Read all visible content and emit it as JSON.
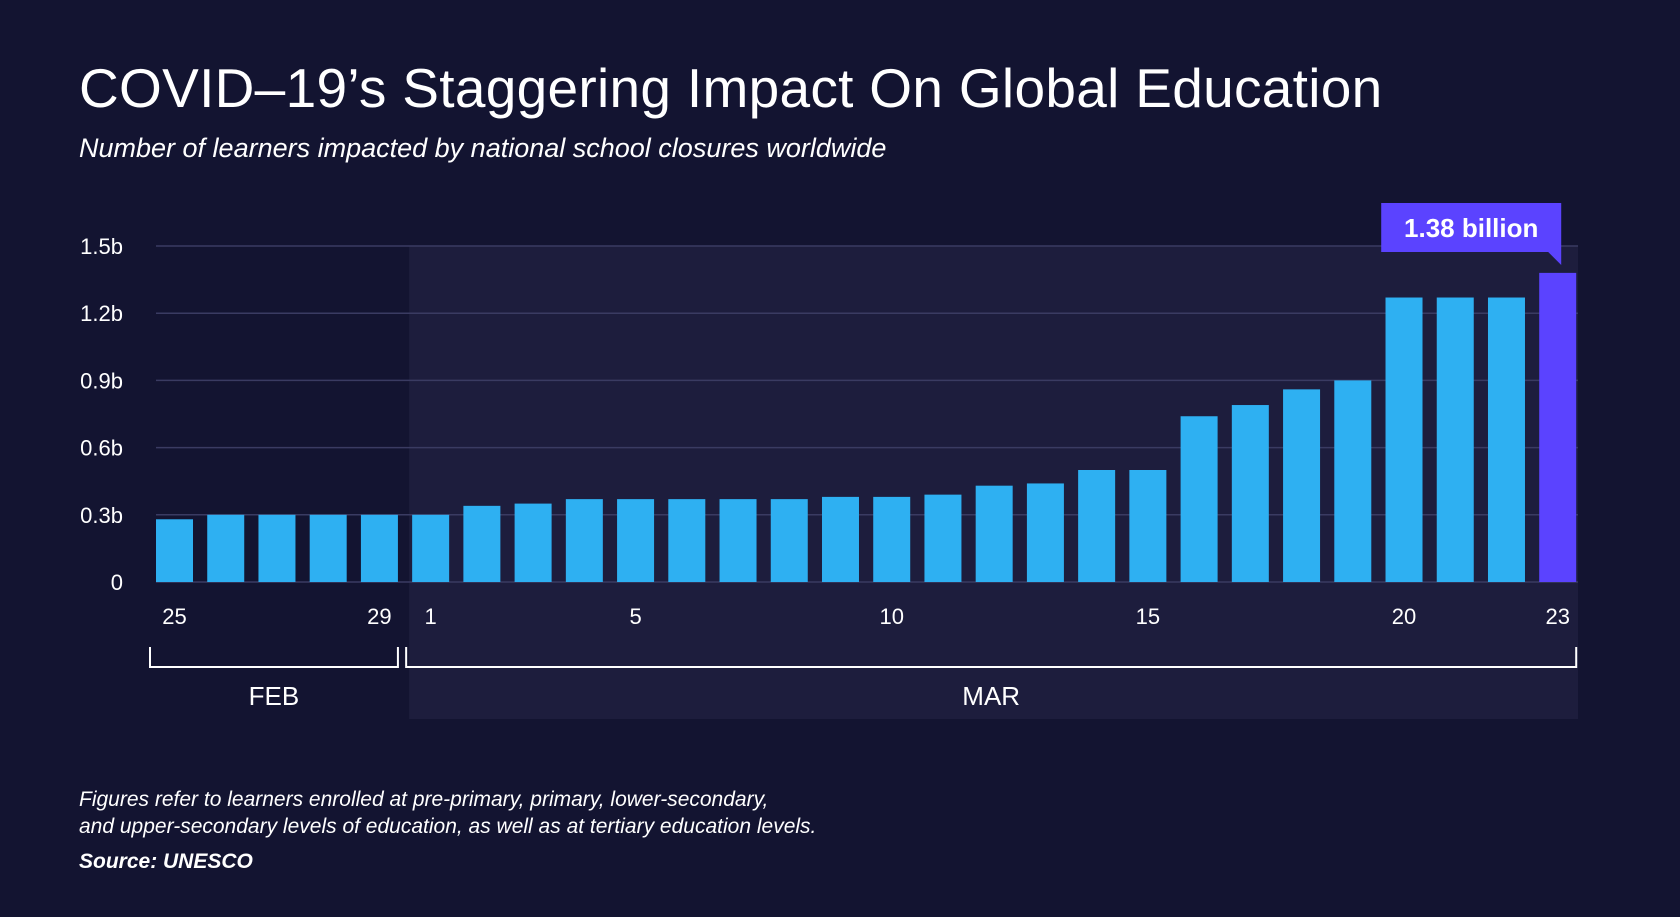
{
  "header": {
    "title": "COVID–19’s Staggering Impact On Global Education",
    "subtitle": "Number of learners impacted by national school closures worldwide"
  },
  "footer": {
    "note_line1": "Figures refer to learners enrolled at pre-primary, primary, lower-secondary,",
    "note_line2": "and upper-secondary levels of education, as well as at tertiary education levels.",
    "source": "Source: UNESCO"
  },
  "colors": {
    "background": "#131431",
    "march_shade": "#1d1d3d",
    "bar": "#2eb0f2",
    "highlight": "#5b43ff",
    "gridline": "#3a3b62"
  },
  "chart_data": {
    "type": "bar",
    "title": "COVID–19’s Staggering Impact On Global Education",
    "subtitle": "Number of learners impacted by national school closures worldwide",
    "ylim": [
      0,
      1.5
    ],
    "y_ticks": [
      {
        "value": 0,
        "label": "0"
      },
      {
        "value": 0.3,
        "label": "0.3b"
      },
      {
        "value": 0.6,
        "label": "0.6b"
      },
      {
        "value": 0.9,
        "label": "0.9b"
      },
      {
        "value": 1.2,
        "label": "1.2b"
      },
      {
        "value": 1.5,
        "label": "1.5b"
      }
    ],
    "grid": true,
    "categories": [
      "Feb 25",
      "Feb 26",
      "Feb 27",
      "Feb 28",
      "Feb 29",
      "Mar 1",
      "Mar 2",
      "Mar 3",
      "Mar 4",
      "Mar 5",
      "Mar 6",
      "Mar 7",
      "Mar 8",
      "Mar 9",
      "Mar 10",
      "Mar 11",
      "Mar 12",
      "Mar 13",
      "Mar 14",
      "Mar 15",
      "Mar 16",
      "Mar 17",
      "Mar 18",
      "Mar 19",
      "Mar 20",
      "Mar 21",
      "Mar 22",
      "Mar 23"
    ],
    "values": [
      0.28,
      0.3,
      0.3,
      0.3,
      0.3,
      0.3,
      0.34,
      0.35,
      0.37,
      0.37,
      0.37,
      0.37,
      0.37,
      0.38,
      0.38,
      0.39,
      0.43,
      0.44,
      0.5,
      0.5,
      0.74,
      0.79,
      0.86,
      0.9,
      1.27,
      1.27,
      1.27,
      1.38
    ],
    "x_tick_labels": [
      {
        "index": 0,
        "label": "25"
      },
      {
        "index": 4,
        "label": "29"
      },
      {
        "index": 5,
        "label": "1"
      },
      {
        "index": 9,
        "label": "5"
      },
      {
        "index": 14,
        "label": "10"
      },
      {
        "index": 19,
        "label": "15"
      },
      {
        "index": 24,
        "label": "20"
      },
      {
        "index": 27,
        "label": "23"
      }
    ],
    "groups": [
      {
        "label": "FEB",
        "start": 0,
        "end": 4
      },
      {
        "label": "MAR",
        "start": 5,
        "end": 27
      }
    ],
    "highlight": {
      "index": 27,
      "label": "1.38 billion"
    }
  }
}
